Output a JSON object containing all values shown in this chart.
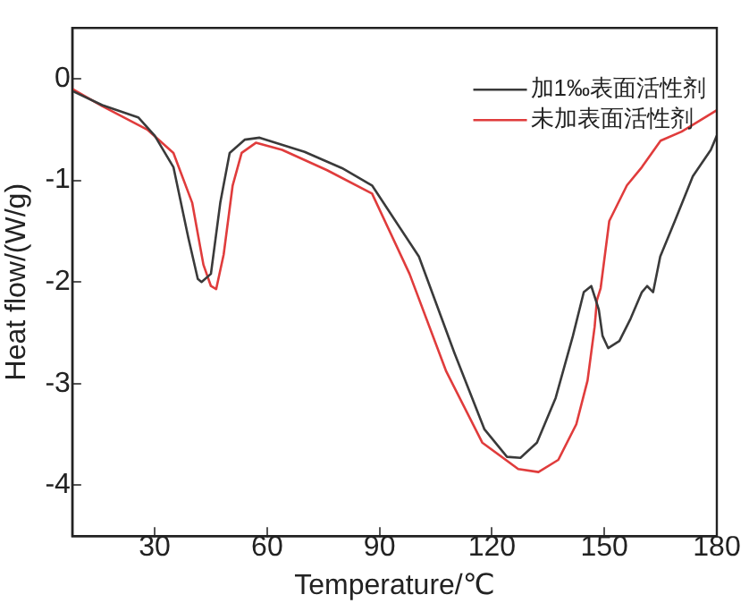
{
  "chart_data": {
    "type": "line",
    "xlabel": "Temperature/℃",
    "ylabel": "Heat flow/(W/g)",
    "xlim": [
      8,
      180
    ],
    "ylim": [
      -4.5,
      0.5
    ],
    "xticks": [
      30,
      60,
      90,
      120,
      150,
      180
    ],
    "yticks": [
      0,
      -1,
      -2,
      -3,
      -4
    ],
    "grid": false,
    "legend": "top right",
    "marker": "none",
    "line_style": "solid",
    "series": [
      {
        "name": "加1‰表面活性剂",
        "color": "#3a3a3a",
        "x": [
          8,
          16,
          25.6,
          30,
          35,
          39,
          41.5,
          42.5,
          45,
          47.5,
          50,
          54,
          58,
          70,
          80,
          88,
          100.5,
          110,
          118,
          124,
          127.6,
          132,
          137,
          141.6,
          144.5,
          146.5,
          148.5,
          149.5,
          151,
          154,
          157,
          160,
          161.4,
          163,
          164.9,
          168.8,
          173.6,
          178.4,
          180
        ],
        "values": [
          -0.12,
          -0.26,
          -0.38,
          -0.56,
          -0.87,
          -1.57,
          -1.97,
          -2.0,
          -1.92,
          -1.22,
          -0.73,
          -0.6,
          -0.58,
          -0.72,
          -0.88,
          -1.05,
          -1.75,
          -2.7,
          -3.45,
          -3.72,
          -3.73,
          -3.58,
          -3.14,
          -2.53,
          -2.1,
          -2.04,
          -2.27,
          -2.53,
          -2.65,
          -2.58,
          -2.36,
          -2.1,
          -2.04,
          -2.1,
          -1.75,
          -1.4,
          -0.96,
          -0.7,
          -0.56
        ]
      },
      {
        "name": "未加表面活性剂",
        "color": "#e03c3c",
        "x": [
          8,
          16,
          28,
          35,
          40,
          43,
          45,
          46.4,
          48.4,
          50.8,
          53.2,
          57,
          64,
          76,
          88,
          98,
          107.8,
          117.4,
          127,
          132.4,
          137.7,
          142.5,
          145.5,
          147.4,
          148,
          149,
          151.3,
          156,
          160,
          165,
          170.6,
          180
        ],
        "values": [
          -0.1,
          -0.27,
          -0.5,
          -0.73,
          -1.22,
          -1.83,
          -2.04,
          -2.07,
          -1.73,
          -1.05,
          -0.73,
          -0.63,
          -0.7,
          -0.9,
          -1.13,
          -1.92,
          -2.88,
          -3.58,
          -3.84,
          -3.87,
          -3.75,
          -3.4,
          -2.97,
          -2.44,
          -2.18,
          -2.06,
          -1.4,
          -1.05,
          -0.87,
          -0.61,
          -0.52,
          -0.31
        ]
      }
    ]
  }
}
